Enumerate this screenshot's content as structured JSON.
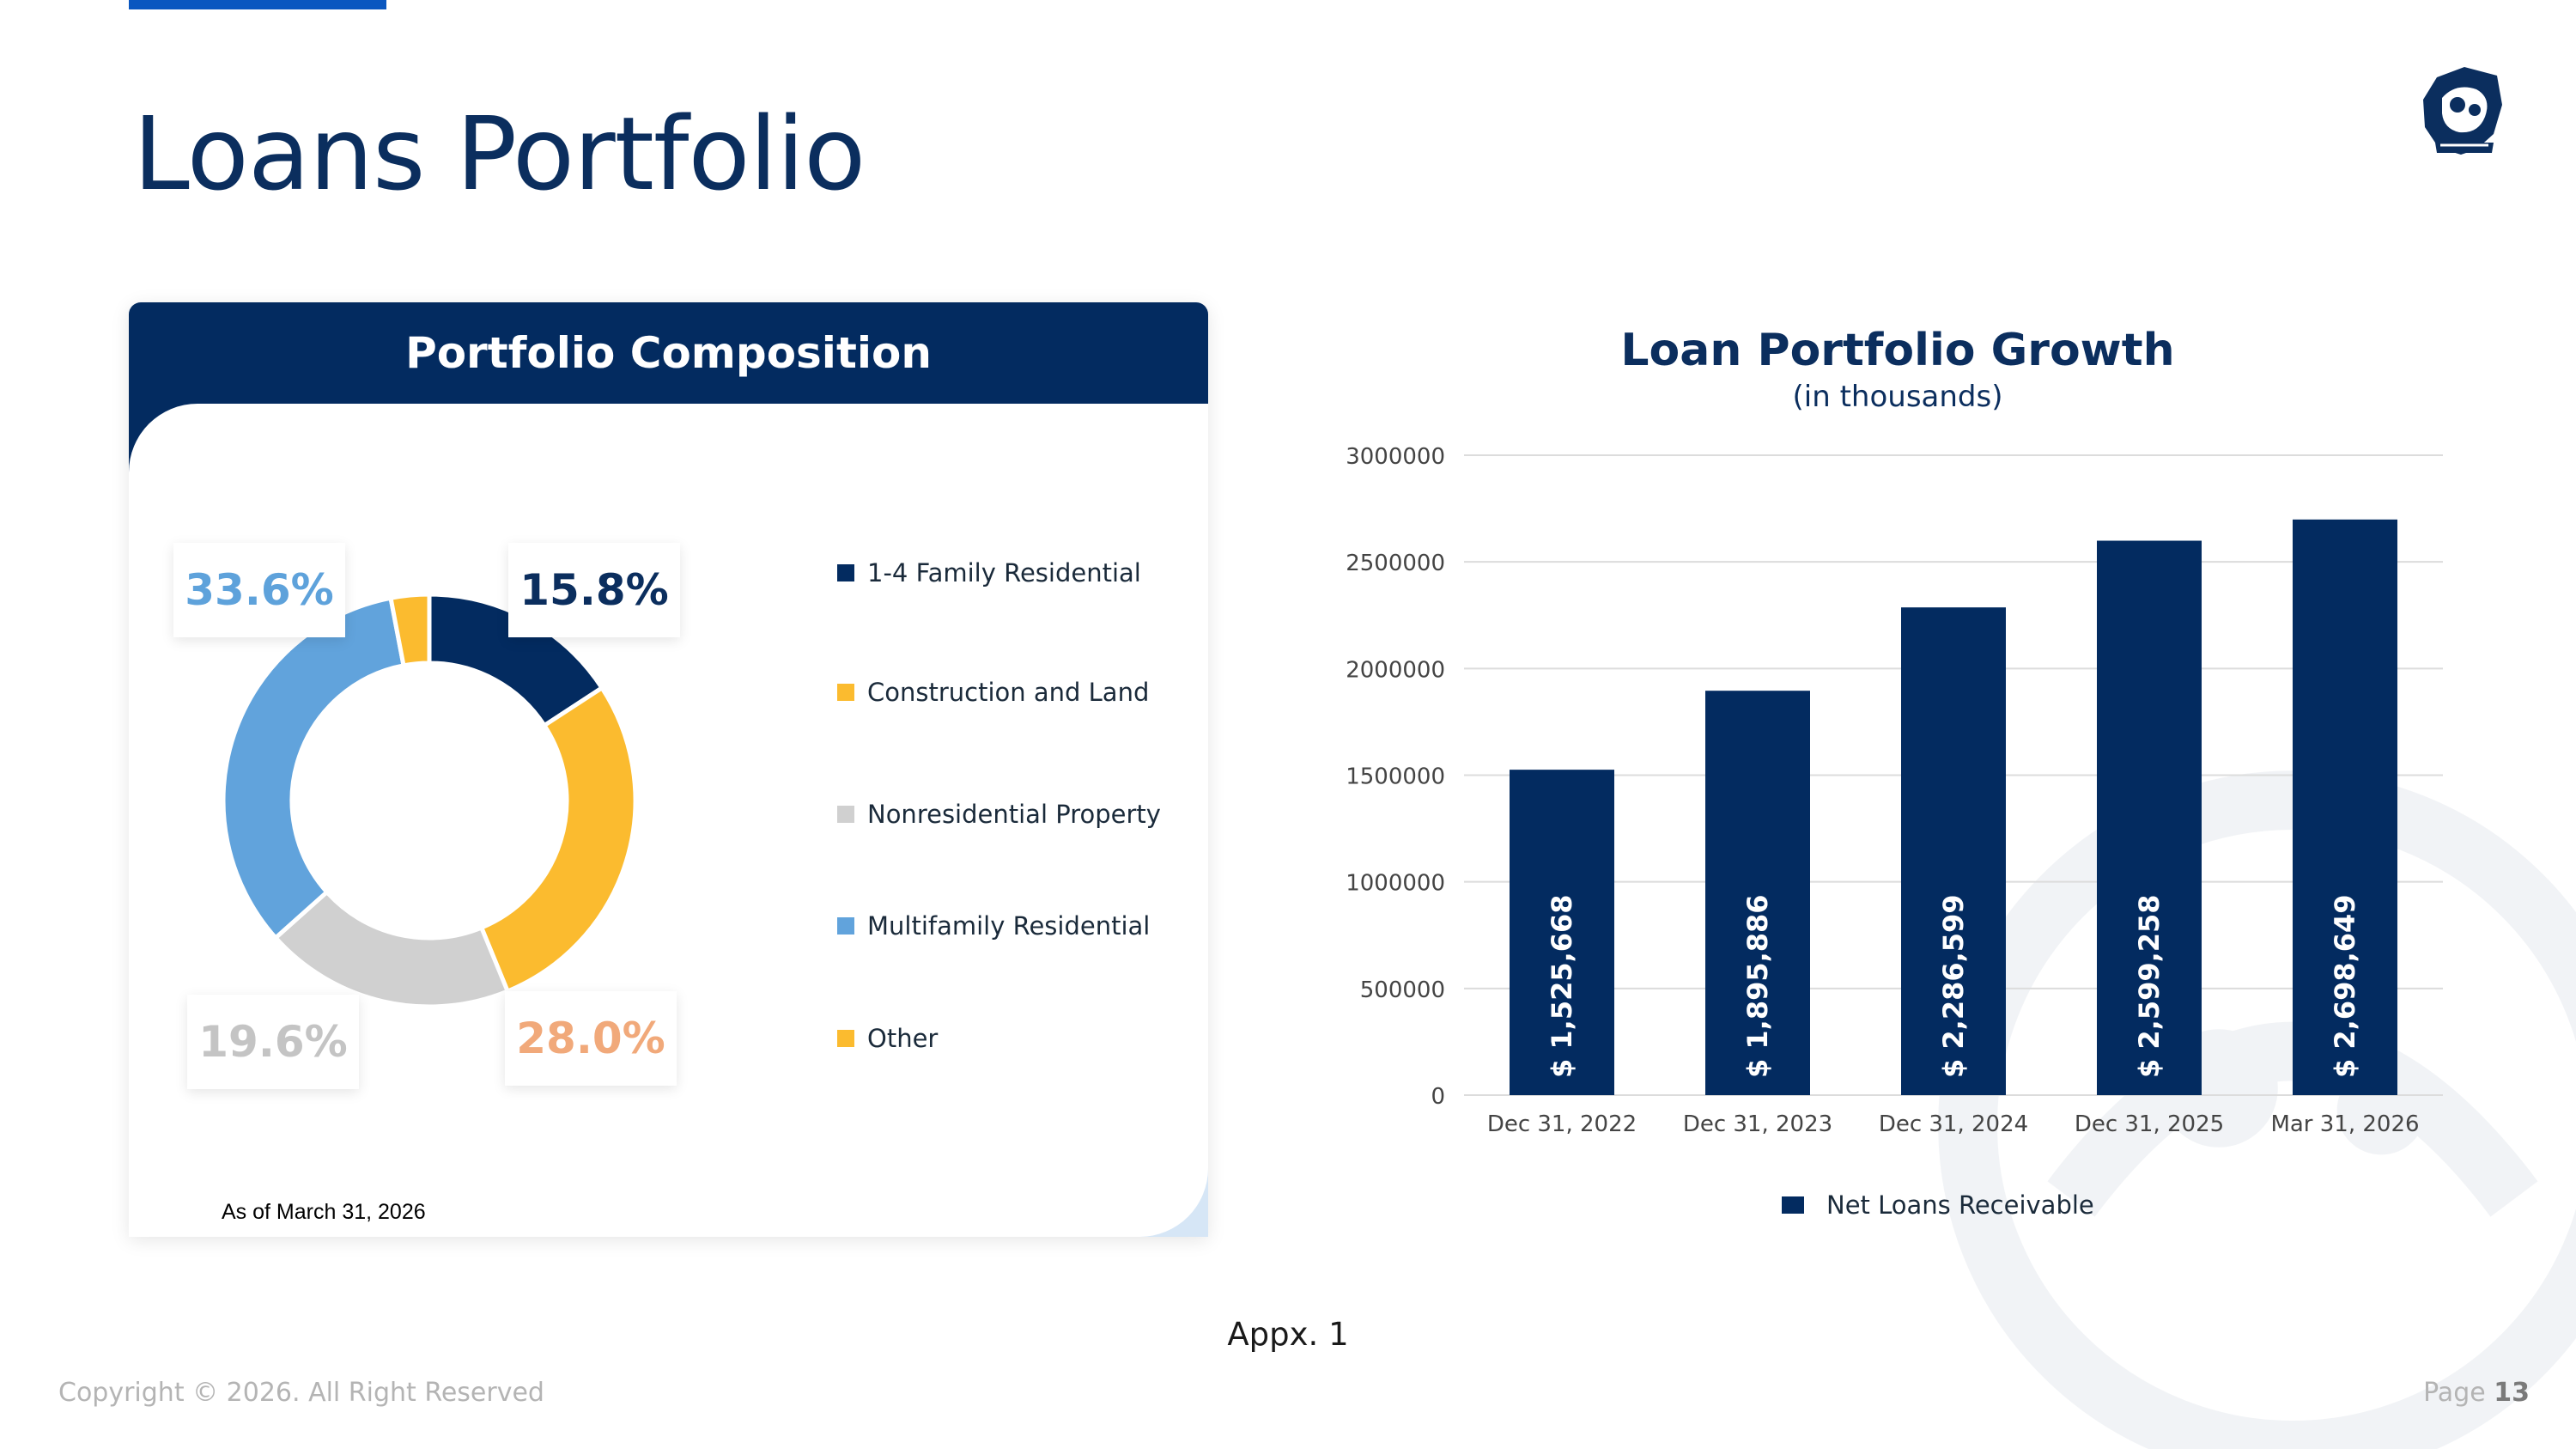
{
  "page": {
    "title": "Loans Portfolio",
    "appendix_label": "Appx. 1",
    "copyright": "Copyright © 2026. All Right Reserved",
    "page_label": "Page",
    "page_number": "13"
  },
  "composition": {
    "title": "Portfolio Composition",
    "as_of": "As of March 31, 2026",
    "callouts": [
      "33.6%",
      "15.8%",
      "19.6%",
      "28.0%"
    ],
    "callout_colors": [
      "#5ea2db",
      "#0b2e5e",
      "#c4c4c4",
      "#f1a97a"
    ]
  },
  "growth": {
    "title": "Loan Portfolio Growth",
    "subtitle": "(in thousands)",
    "legend": "Net Loans Receivable"
  },
  "colors": {
    "navy": "#032b60",
    "gold": "#fbbb2f",
    "gray": "#d0d0d0",
    "light_blue": "#61a3dc"
  },
  "chart_data": [
    {
      "type": "pie",
      "title": "Portfolio Composition",
      "categories": [
        "1-4 Family Residential",
        "Construction and Land",
        "Nonresidential Property",
        "Multifamily Residential",
        "Other"
      ],
      "values": [
        15.8,
        28.0,
        19.6,
        33.6,
        3.0
      ],
      "colors": [
        "#032b60",
        "#fbbb2f",
        "#d0d0d0",
        "#61a3dc",
        "#fbbb2f"
      ],
      "legend_placement": "right"
    },
    {
      "type": "bar",
      "title": "Loan Portfolio Growth",
      "subtitle": "(in thousands)",
      "categories": [
        "Dec 31, 2022",
        "Dec 31, 2023",
        "Dec 31, 2024",
        "Dec 31, 2025",
        "Mar 31, 2026"
      ],
      "series": [
        {
          "name": "Net Loans Receivable",
          "values": [
            1525668,
            1895886,
            2286599,
            2599258,
            2698649
          ],
          "labels": [
            "$ 1,525,668",
            "$ 1,895,886",
            "$ 2,286,599",
            "$ 2,599,258",
            "$ 2,698,649"
          ]
        }
      ],
      "ylim": [
        0,
        3000000
      ],
      "yticks": [
        0,
        500000,
        1000000,
        1500000,
        2000000,
        2500000,
        3000000
      ],
      "grid": true,
      "legend_placement": "bottom"
    }
  ]
}
